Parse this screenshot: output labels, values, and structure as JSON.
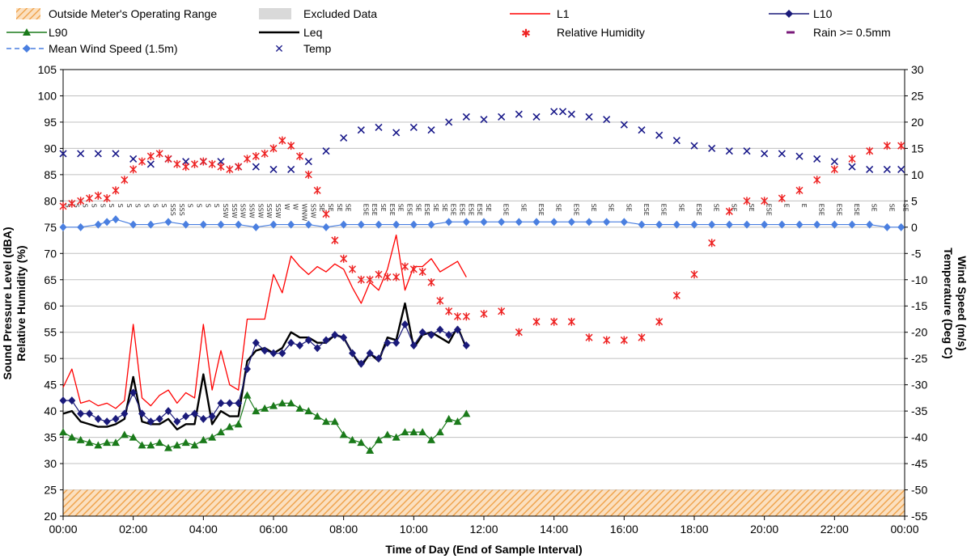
{
  "chart_data": {
    "type": "line",
    "x_unit": "hours",
    "xlabel": "Time of Day (End of Sample Interval)",
    "ylabel_left_line1": "Sound Pressure Level (dBA)",
    "ylabel_left_line2": "Relative Humidity (%)",
    "ylabel_right_line1": "Wind Speed (m/s)",
    "ylabel_right_line2": "Temperature (Deg C)",
    "ylim_left": [
      20,
      105
    ],
    "ylim_right": [
      -55,
      30
    ],
    "xlim": [
      0,
      24
    ],
    "left_ticks": [
      "20",
      "25",
      "30",
      "35",
      "40",
      "45",
      "50",
      "55",
      "60",
      "65",
      "70",
      "75",
      "80",
      "85",
      "90",
      "95",
      "100",
      "105"
    ],
    "right_ticks": [
      "-55",
      "-50",
      "-45",
      "-40",
      "-35",
      "-30",
      "-25",
      "-20",
      "-15",
      "-10",
      "-5",
      "0",
      "5",
      "10",
      "15",
      "20",
      "25",
      "30"
    ],
    "x_ticks": [
      "00:00",
      "02:00",
      "04:00",
      "06:00",
      "08:00",
      "10:00",
      "12:00",
      "14:00",
      "16:00",
      "18:00",
      "20:00",
      "22:00",
      "00:00"
    ],
    "grid": true,
    "legend_position": "top",
    "legend": {
      "outside_range": "Outside Meter's Operating Range",
      "excluded": "Excluded Data",
      "l1": "L1",
      "l10": "L10",
      "l90": "L90",
      "leq": "Leq",
      "rh": "Relative Humidity",
      "rain": "Rain >= 0.5mm",
      "wind": "Mean Wind Speed (1.5m)",
      "temp": "Temp"
    },
    "colors": {
      "l1": "#ff0000",
      "l10": "#1a1a7a",
      "l90": "#1a7a1a",
      "leq": "#000000",
      "rh": "#ee2222",
      "rain": "#7a1a7a",
      "wind": "#4a7fe0",
      "temp": "#1a1a8a",
      "hatch": "#f5b36a",
      "excluded": "#d0d0d0"
    },
    "outside_range_band": [
      20,
      25
    ],
    "series": [
      {
        "key": "l1",
        "name": "L1",
        "axis": "left",
        "x": [
          0.0,
          0.25,
          0.5,
          0.75,
          1.0,
          1.25,
          1.5,
          1.75,
          2.0,
          2.25,
          2.5,
          2.75,
          3.0,
          3.25,
          3.5,
          3.75,
          4.0,
          4.25,
          4.5,
          4.75,
          5.0,
          5.25,
          5.5,
          5.75,
          6.0,
          6.25,
          6.5,
          6.75,
          7.0,
          7.25,
          7.5,
          7.75,
          8.0,
          8.25,
          8.5,
          8.75,
          9.0,
          9.25,
          9.5,
          9.75,
          10.0,
          10.25,
          10.5,
          10.75,
          11.0,
          11.25,
          11.5
        ],
        "values": [
          44.5,
          48,
          41.5,
          42,
          41,
          41.5,
          40.5,
          42,
          56.5,
          42.5,
          41,
          43,
          44,
          41.5,
          43.5,
          42.5,
          56.5,
          44,
          51.5,
          45,
          44,
          57.5,
          57.5,
          57.5,
          66,
          62.5,
          69.5,
          67.5,
          66,
          67.5,
          66.5,
          68,
          67,
          63.5,
          60.5,
          64.5,
          63,
          67,
          73.5,
          63,
          67.5,
          67.5,
          69,
          66.5,
          67.5,
          68.5,
          65.5
        ]
      },
      {
        "key": "l10",
        "name": "L10",
        "axis": "left",
        "x": [
          0.0,
          0.25,
          0.5,
          0.75,
          1.0,
          1.25,
          1.5,
          1.75,
          2.0,
          2.25,
          2.5,
          2.75,
          3.0,
          3.25,
          3.5,
          3.75,
          4.0,
          4.25,
          4.5,
          4.75,
          5.0,
          5.25,
          5.5,
          5.75,
          6.0,
          6.25,
          6.5,
          6.75,
          7.0,
          7.25,
          7.5,
          7.75,
          8.0,
          8.25,
          8.5,
          8.75,
          9.0,
          9.25,
          9.5,
          9.75,
          10.0,
          10.25,
          10.5,
          10.75,
          11.0,
          11.25,
          11.5
        ],
        "values": [
          42,
          42,
          39.5,
          39.5,
          38.5,
          38,
          38.5,
          39.5,
          43.5,
          39.5,
          38,
          38.5,
          40,
          38,
          39,
          39.5,
          38.5,
          39,
          41.5,
          41.5,
          41.5,
          48,
          53,
          51.5,
          51,
          51,
          53,
          52.5,
          53.5,
          52,
          53.5,
          54.5,
          54,
          51,
          49,
          51,
          50,
          53,
          53,
          56.5,
          52.5,
          55,
          54.5,
          55.5,
          54.5,
          55.5,
          52.5
        ]
      },
      {
        "key": "l90",
        "name": "L90",
        "axis": "left",
        "x": [
          0.0,
          0.25,
          0.5,
          0.75,
          1.0,
          1.25,
          1.5,
          1.75,
          2.0,
          2.25,
          2.5,
          2.75,
          3.0,
          3.25,
          3.5,
          3.75,
          4.0,
          4.25,
          4.5,
          4.75,
          5.0,
          5.25,
          5.5,
          5.75,
          6.0,
          6.25,
          6.5,
          6.75,
          7.0,
          7.25,
          7.5,
          7.75,
          8.0,
          8.25,
          8.5,
          8.75,
          9.0,
          9.25,
          9.5,
          9.75,
          10.0,
          10.25,
          10.5,
          10.75,
          11.0,
          11.25,
          11.5
        ],
        "values": [
          36,
          35,
          34.5,
          34,
          33.5,
          34,
          34,
          35.5,
          35,
          33.5,
          33.5,
          34,
          33,
          33.5,
          34,
          33.5,
          34.5,
          35,
          36,
          37,
          37.5,
          43,
          40,
          40.5,
          41,
          41.5,
          41.5,
          40.5,
          40,
          39,
          38,
          38,
          35.5,
          34.5,
          34,
          32.5,
          34.5,
          35.5,
          35,
          36,
          36,
          36,
          34.5,
          36,
          38.5,
          38,
          39.5
        ]
      },
      {
        "key": "leq",
        "name": "Leq",
        "axis": "left",
        "x": [
          0.0,
          0.25,
          0.5,
          0.75,
          1.0,
          1.25,
          1.5,
          1.75,
          2.0,
          2.25,
          2.5,
          2.75,
          3.0,
          3.25,
          3.5,
          3.75,
          4.0,
          4.25,
          4.5,
          4.75,
          5.0,
          5.25,
          5.5,
          5.75,
          6.0,
          6.25,
          6.5,
          6.75,
          7.0,
          7.25,
          7.5,
          7.75,
          8.0,
          8.25,
          8.5,
          8.75,
          9.0,
          9.25,
          9.5,
          9.75,
          10.0,
          10.25,
          10.5,
          10.75,
          11.0,
          11.25,
          11.5
        ],
        "values": [
          39.5,
          40,
          38,
          37.5,
          37,
          37,
          37.5,
          38.5,
          46.5,
          38,
          37.5,
          37.5,
          38.5,
          36.5,
          37.5,
          37.5,
          47,
          37.5,
          40,
          39,
          39,
          49.5,
          51.5,
          52,
          51,
          52,
          55,
          54,
          54,
          53,
          53,
          54.5,
          54,
          51,
          48.5,
          51,
          49.5,
          54,
          53.5,
          60.5,
          52,
          54.5,
          55,
          54,
          53,
          56,
          52
        ]
      },
      {
        "key": "rh",
        "name": "Relative Humidity",
        "axis": "left",
        "x": [
          0.0,
          0.25,
          0.5,
          0.75,
          1.0,
          1.25,
          1.5,
          1.75,
          2.0,
          2.25,
          2.5,
          2.75,
          3.0,
          3.25,
          3.5,
          3.75,
          4.0,
          4.25,
          4.5,
          4.75,
          5.0,
          5.25,
          5.5,
          5.75,
          6.0,
          6.25,
          6.5,
          6.75,
          7.0,
          7.25,
          7.5,
          7.75,
          8.0,
          8.25,
          8.5,
          8.75,
          9.0,
          9.25,
          9.5,
          9.75,
          10.0,
          10.25,
          10.5,
          10.75,
          11.0,
          11.25,
          11.5,
          12.0,
          12.5,
          13.0,
          13.5,
          14.0,
          14.5,
          15.0,
          15.5,
          16.0,
          16.5,
          17.0,
          17.5,
          18.0,
          18.5,
          19.0,
          19.5,
          20.0,
          20.5,
          21.0,
          21.5,
          22.0,
          22.5,
          23.0,
          23.5,
          23.9
        ],
        "values": [
          79,
          79.5,
          80,
          80.5,
          81,
          80.5,
          82,
          84,
          86,
          87.5,
          88.5,
          89,
          88,
          87,
          86.5,
          87,
          87.5,
          87,
          86.5,
          86,
          86.5,
          88,
          88.5,
          89,
          90,
          91.5,
          90.5,
          88.5,
          85,
          82,
          77.5,
          72.5,
          69,
          67,
          65,
          65,
          66,
          65.5,
          65.5,
          67.5,
          67,
          66.5,
          64.5,
          61,
          59,
          58,
          58,
          58.5,
          59,
          55,
          57,
          57,
          57,
          54,
          53.5,
          53.5,
          54,
          57,
          62,
          66,
          72,
          78,
          80,
          80,
          80.5,
          82,
          84,
          86,
          88,
          89.5,
          90.5,
          90.5
        ]
      },
      {
        "key": "wind",
        "name": "Mean Wind Speed (1.5m)",
        "axis": "right",
        "x": [
          0.0,
          0.5,
          1.0,
          1.25,
          1.5,
          2.0,
          2.5,
          3.0,
          3.5,
          4.0,
          4.5,
          5.0,
          5.5,
          6.0,
          6.5,
          7.0,
          7.5,
          8.0,
          8.5,
          9.0,
          9.5,
          10.0,
          10.5,
          11.0,
          11.5,
          12.0,
          12.5,
          13.0,
          13.5,
          14.0,
          14.5,
          15.0,
          15.5,
          16.0,
          16.5,
          17.0,
          17.5,
          18.0,
          18.5,
          19.0,
          19.5,
          20.0,
          20.5,
          21.0,
          21.5,
          22.0,
          22.5,
          23.0,
          23.5,
          23.9
        ],
        "values": [
          0,
          0,
          0.5,
          1,
          1.5,
          0.5,
          0.5,
          1,
          0.5,
          0.5,
          0.5,
          0.5,
          0,
          0.5,
          0.5,
          0.5,
          0,
          0.5,
          0.5,
          0.5,
          0.5,
          0.5,
          0.5,
          1,
          1,
          1,
          1,
          1,
          1,
          1,
          1,
          1,
          1,
          1,
          0.5,
          0.5,
          0.5,
          0.5,
          0.5,
          0.5,
          0.5,
          0.5,
          0.5,
          0.5,
          0.5,
          0.5,
          0.5,
          0.5,
          0,
          0
        ]
      },
      {
        "key": "temp",
        "name": "Temp",
        "axis": "right",
        "x": [
          0.0,
          0.5,
          1.0,
          1.5,
          2.0,
          2.5,
          3.0,
          3.5,
          4.0,
          4.5,
          5.0,
          5.5,
          6.0,
          6.5,
          7.0,
          7.5,
          8.0,
          8.5,
          9.0,
          9.5,
          10.0,
          10.5,
          11.0,
          11.5,
          12.0,
          12.5,
          13.0,
          13.5,
          14.0,
          14.25,
          14.5,
          15.0,
          15.5,
          16.0,
          16.5,
          17.0,
          17.5,
          18.0,
          18.5,
          19.0,
          19.5,
          20.0,
          20.5,
          21.0,
          21.5,
          22.0,
          22.5,
          23.0,
          23.5,
          23.9
        ],
        "values": [
          14,
          14,
          14,
          14,
          13,
          12,
          13,
          12.5,
          12.5,
          12.5,
          11.5,
          11.5,
          11,
          11,
          12.5,
          14.5,
          17,
          18.5,
          19,
          18,
          19,
          18.5,
          20,
          21,
          20.5,
          21,
          21.5,
          21,
          22,
          22,
          21.5,
          21,
          20.5,
          19.5,
          18.5,
          17.5,
          16.5,
          15.5,
          15,
          14.5,
          14.5,
          14,
          14,
          13.5,
          13,
          12.5,
          11.5,
          11,
          11,
          11
        ]
      }
    ],
    "wind_direction_labels": [
      {
        "x": 0.0,
        "label": "S"
      },
      {
        "x": 0.25,
        "label": "S"
      },
      {
        "x": 0.5,
        "label": "S"
      },
      {
        "x": 0.75,
        "label": "S"
      },
      {
        "x": 1.0,
        "label": "S"
      },
      {
        "x": 1.25,
        "label": "S"
      },
      {
        "x": 1.5,
        "label": "S"
      },
      {
        "x": 1.75,
        "label": "S"
      },
      {
        "x": 2.0,
        "label": "S"
      },
      {
        "x": 2.25,
        "label": "S"
      },
      {
        "x": 2.5,
        "label": "S"
      },
      {
        "x": 2.75,
        "label": "S"
      },
      {
        "x": 3.0,
        "label": "SSS"
      },
      {
        "x": 3.25,
        "label": "SSS"
      },
      {
        "x": 3.5,
        "label": "S"
      },
      {
        "x": 3.75,
        "label": "S"
      },
      {
        "x": 4.0,
        "label": "S"
      },
      {
        "x": 4.25,
        "label": "S"
      },
      {
        "x": 4.5,
        "label": "SSW"
      },
      {
        "x": 4.75,
        "label": "SSW"
      },
      {
        "x": 5.0,
        "label": "SSW"
      },
      {
        "x": 5.25,
        "label": "SSW"
      },
      {
        "x": 5.5,
        "label": "SSW"
      },
      {
        "x": 5.75,
        "label": "SSW"
      },
      {
        "x": 6.0,
        "label": "SSW"
      },
      {
        "x": 6.25,
        "label": "W"
      },
      {
        "x": 6.5,
        "label": "W"
      },
      {
        "x": 6.75,
        "label": "WNW"
      },
      {
        "x": 7.0,
        "label": "SSW"
      },
      {
        "x": 7.25,
        "label": "SE"
      },
      {
        "x": 7.5,
        "label": "SE"
      },
      {
        "x": 7.75,
        "label": "SE"
      },
      {
        "x": 8.0,
        "label": "SE"
      },
      {
        "x": 8.5,
        "label": "ESE"
      },
      {
        "x": 8.75,
        "label": "ESE"
      },
      {
        "x": 9.0,
        "label": "SE"
      },
      {
        "x": 9.25,
        "label": "ESE"
      },
      {
        "x": 9.5,
        "label": "SE"
      },
      {
        "x": 9.75,
        "label": "ESE"
      },
      {
        "x": 10.0,
        "label": "SE"
      },
      {
        "x": 10.25,
        "label": "ESE"
      },
      {
        "x": 10.5,
        "label": "SE"
      },
      {
        "x": 10.75,
        "label": "SE"
      },
      {
        "x": 11.0,
        "label": "ESE"
      },
      {
        "x": 11.25,
        "label": "ESE"
      },
      {
        "x": 11.5,
        "label": "ESE"
      },
      {
        "x": 11.75,
        "label": "ESE"
      },
      {
        "x": 12.0,
        "label": "SE"
      },
      {
        "x": 12.5,
        "label": "ESE"
      },
      {
        "x": 13.0,
        "label": "SE"
      },
      {
        "x": 13.5,
        "label": "ESE"
      },
      {
        "x": 14.0,
        "label": "SE"
      },
      {
        "x": 14.5,
        "label": "ESE"
      },
      {
        "x": 15.0,
        "label": "SE"
      },
      {
        "x": 15.5,
        "label": "SE"
      },
      {
        "x": 16.0,
        "label": "SE"
      },
      {
        "x": 16.5,
        "label": "ESE"
      },
      {
        "x": 17.0,
        "label": "ESE"
      },
      {
        "x": 17.5,
        "label": "SE"
      },
      {
        "x": 18.0,
        "label": "ESE"
      },
      {
        "x": 18.5,
        "label": "SE"
      },
      {
        "x": 19.0,
        "label": "SE"
      },
      {
        "x": 19.5,
        "label": "SE"
      },
      {
        "x": 20.0,
        "label": "ESE"
      },
      {
        "x": 20.5,
        "label": "E"
      },
      {
        "x": 21.0,
        "label": "E"
      },
      {
        "x": 21.5,
        "label": "ESE"
      },
      {
        "x": 22.0,
        "label": "ESE"
      },
      {
        "x": 22.5,
        "label": "ESE"
      },
      {
        "x": 23.0,
        "label": "SE"
      },
      {
        "x": 23.5,
        "label": "SE"
      },
      {
        "x": 23.9,
        "label": "SE"
      }
    ]
  }
}
